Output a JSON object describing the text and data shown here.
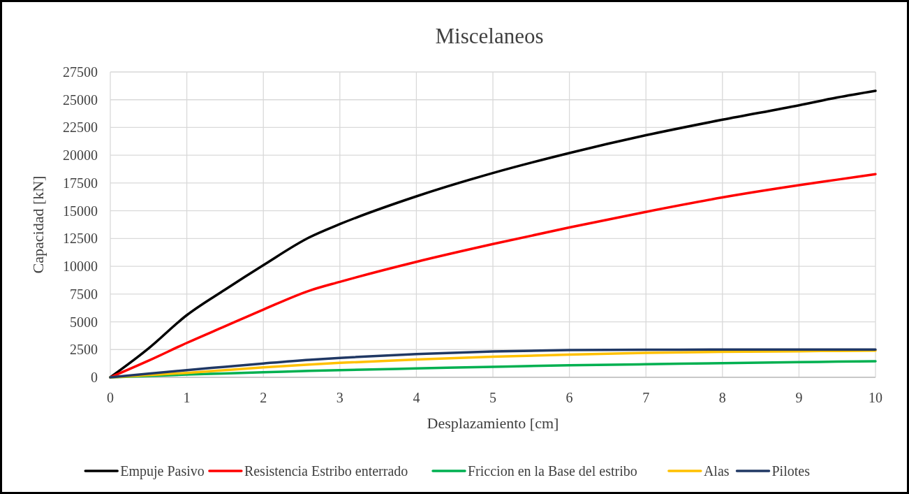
{
  "chart_data": {
    "type": "line",
    "title": "Miscelaneos",
    "xlabel": "Desplazamiento [cm]",
    "ylabel": "Capacidad [kN]",
    "x": [
      0,
      0.5,
      1,
      1.5,
      2,
      2.6,
      3,
      4,
      5,
      6,
      7,
      8,
      9,
      9.5,
      10
    ],
    "series": [
      {
        "name": "Empuje Pasivo",
        "color": "#000000",
        "values": [
          0,
          2600,
          5600,
          7900,
          10100,
          12600,
          13800,
          16300,
          18400,
          20200,
          21800,
          23200,
          24500,
          25200,
          25800
        ]
      },
      {
        "name": "Resistencia Estribo enterrado",
        "color": "#ff0000",
        "values": [
          0,
          1500,
          3100,
          4600,
          6100,
          7800,
          8600,
          10400,
          12000,
          13500,
          14900,
          16200,
          17300,
          17800,
          18300
        ]
      },
      {
        "name": "Friccion en la Base del estribo",
        "color": "#00b050",
        "values": [
          0,
          120,
          250,
          350,
          450,
          580,
          650,
          800,
          950,
          1080,
          1180,
          1280,
          1370,
          1410,
          1450
        ]
      },
      {
        "name": "Alas",
        "color": "#ffc000",
        "values": [
          0,
          200,
          400,
          650,
          900,
          1150,
          1300,
          1600,
          1850,
          2050,
          2200,
          2300,
          2350,
          2380,
          2400
        ]
      },
      {
        "name": "Pilotes",
        "color": "#203864",
        "values": [
          0,
          330,
          650,
          950,
          1250,
          1580,
          1750,
          2100,
          2330,
          2450,
          2480,
          2500,
          2500,
          2500,
          2500
        ]
      }
    ],
    "xlim": [
      0,
      10
    ],
    "xticks": [
      0,
      1,
      2,
      3,
      4,
      5,
      6,
      7,
      8,
      9,
      10
    ],
    "ylim": [
      0,
      27500
    ],
    "yticks": [
      0,
      2500,
      5000,
      7500,
      10000,
      12500,
      15000,
      17500,
      20000,
      22500,
      25000,
      27500
    ],
    "grid": true,
    "legend": "bottom",
    "marker": "none",
    "line_style": "solid"
  }
}
